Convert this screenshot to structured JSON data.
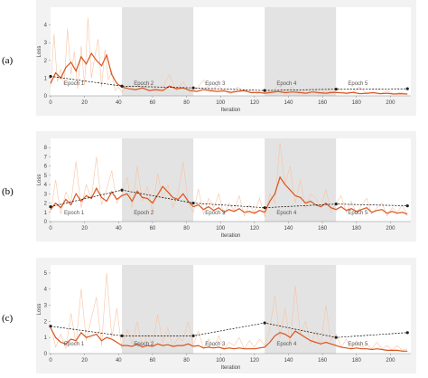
{
  "chart_data": [
    {
      "panel": "(a)",
      "type": "line",
      "xlabel": "Iteration",
      "ylabel": "Loss",
      "xlim": [
        0,
        212
      ],
      "ylim": [
        0,
        5
      ],
      "xticks": [
        0,
        20,
        40,
        60,
        80,
        100,
        120,
        140,
        160,
        180,
        200
      ],
      "yticks": [
        0,
        1,
        2,
        3,
        4
      ],
      "grid": false,
      "epoch_bands": [
        [
          42,
          84
        ],
        [
          126,
          168
        ]
      ],
      "epoch_labels": [
        {
          "text": "Epoch 1",
          "x": 8,
          "y": 0.6
        },
        {
          "text": "Epoch 2",
          "x": 49,
          "y": 0.6
        },
        {
          "text": "Epoch 3",
          "x": 91,
          "y": 0.6
        },
        {
          "text": "Epoch 4",
          "x": 133,
          "y": 0.6
        },
        {
          "text": "Epoch 5",
          "x": 175,
          "y": 0.6
        }
      ],
      "series": [
        {
          "role": "raw",
          "color": "#f7c4a4",
          "x": [
            0,
            2,
            4,
            6,
            8,
            10,
            12,
            14,
            16,
            18,
            20,
            22,
            24,
            26,
            28,
            30,
            32,
            34,
            36,
            38,
            40,
            42,
            46,
            50,
            54,
            58,
            62,
            66,
            70,
            74,
            78,
            82,
            86,
            90,
            94,
            98,
            102,
            106,
            110,
            114,
            118,
            122,
            126,
            130,
            134,
            138,
            142,
            146,
            150,
            154,
            158,
            162,
            166,
            170,
            174,
            178,
            182,
            186,
            190,
            194,
            198,
            202,
            206,
            210
          ],
          "y": [
            0.5,
            3.5,
            0.8,
            1.5,
            0.6,
            3.8,
            1.2,
            2.5,
            0.4,
            2.8,
            0.6,
            4.4,
            1.0,
            2.2,
            3.2,
            0.5,
            2.6,
            0.9,
            1.4,
            0.3,
            0.5,
            0.2,
            0.6,
            0.3,
            0.4,
            0.7,
            0.2,
            0.5,
            1.2,
            0.3,
            0.8,
            0.2,
            0.4,
            0.9,
            0.2,
            0.6,
            0.3,
            0.1,
            0.5,
            0.2,
            0.3,
            0.1,
            0.4,
            0.2,
            0.6,
            0.2,
            0.5,
            0.1,
            0.3,
            0.4,
            0.1,
            0.3,
            0.2,
            0.4,
            0.1,
            0.2,
            0.5,
            0.1,
            0.2,
            0.1,
            0.3,
            0.1,
            0.2,
            0.1
          ]
        },
        {
          "role": "smoothed",
          "color": "#d9541e",
          "x": [
            0,
            3,
            6,
            9,
            12,
            15,
            18,
            21,
            24,
            27,
            30,
            33,
            36,
            39,
            42,
            46,
            50,
            54,
            58,
            62,
            66,
            70,
            74,
            78,
            82,
            86,
            90,
            94,
            98,
            102,
            106,
            110,
            114,
            118,
            122,
            126,
            130,
            134,
            138,
            142,
            146,
            150,
            154,
            158,
            162,
            166,
            170,
            174,
            178,
            182,
            186,
            190,
            194,
            198,
            202,
            206,
            210
          ],
          "y": [
            0.7,
            1.3,
            1.0,
            1.6,
            1.9,
            1.4,
            2.2,
            1.8,
            2.4,
            2.0,
            1.7,
            2.3,
            1.2,
            0.7,
            0.5,
            0.4,
            0.35,
            0.45,
            0.3,
            0.35,
            0.3,
            0.55,
            0.4,
            0.45,
            0.3,
            0.25,
            0.35,
            0.3,
            0.25,
            0.28,
            0.2,
            0.25,
            0.3,
            0.18,
            0.2,
            0.15,
            0.2,
            0.25,
            0.18,
            0.22,
            0.2,
            0.15,
            0.22,
            0.18,
            0.15,
            0.2,
            0.18,
            0.15,
            0.2,
            0.12,
            0.15,
            0.18,
            0.12,
            0.15,
            0.1,
            0.12,
            0.1
          ]
        },
        {
          "role": "epoch",
          "color": "#000000",
          "x": [
            0,
            42,
            84,
            126,
            168,
            210
          ],
          "y": [
            1.1,
            0.55,
            0.45,
            0.3,
            0.38,
            0.4
          ]
        }
      ]
    },
    {
      "panel": "(b)",
      "type": "line",
      "xlabel": "Iteration",
      "ylabel": "Loss",
      "xlim": [
        0,
        212
      ],
      "ylim": [
        0,
        9
      ],
      "xticks": [
        0,
        20,
        40,
        60,
        80,
        100,
        120,
        140,
        160,
        180,
        200
      ],
      "yticks": [
        0,
        1,
        2,
        3,
        4,
        5,
        6,
        7,
        8
      ],
      "grid": false,
      "epoch_bands": [
        [
          42,
          84
        ],
        [
          126,
          168
        ]
      ],
      "epoch_labels": [
        {
          "text": "Epoch 1",
          "x": 8,
          "y": 0.8
        },
        {
          "text": "Epoch 2",
          "x": 49,
          "y": 0.8
        },
        {
          "text": "Epoch 3",
          "x": 91,
          "y": 0.8
        },
        {
          "text": "Epoch 4",
          "x": 133,
          "y": 0.8
        },
        {
          "text": "Epoch 5",
          "x": 175,
          "y": 0.8
        }
      ],
      "series": [
        {
          "role": "raw",
          "color": "#f7c4a4",
          "x": [
            0,
            3,
            6,
            9,
            12,
            15,
            18,
            21,
            24,
            27,
            30,
            33,
            36,
            39,
            42,
            45,
            48,
            51,
            54,
            57,
            60,
            63,
            66,
            69,
            72,
            75,
            78,
            81,
            84,
            87,
            90,
            93,
            96,
            99,
            102,
            105,
            108,
            111,
            114,
            117,
            120,
            123,
            126,
            129,
            132,
            135,
            138,
            141,
            144,
            147,
            150,
            153,
            156,
            159,
            162,
            165,
            168,
            171,
            174,
            177,
            180,
            183,
            186,
            189,
            192,
            195,
            198,
            201,
            204,
            207,
            210
          ],
          "y": [
            1.0,
            4.5,
            0.8,
            3.2,
            2.0,
            6.5,
            1.5,
            4.0,
            2.5,
            7.0,
            1.8,
            3.5,
            5.5,
            2.0,
            3.0,
            4.8,
            1.5,
            6.0,
            2.2,
            3.8,
            1.0,
            5.2,
            2.5,
            4.0,
            1.5,
            3.0,
            6.5,
            2.0,
            1.0,
            3.5,
            0.8,
            2.5,
            1.5,
            3.0,
            0.7,
            2.0,
            1.2,
            2.8,
            0.6,
            1.8,
            1.0,
            2.5,
            0.5,
            3.0,
            2.0,
            8.5,
            4.0,
            6.0,
            2.0,
            4.5,
            1.5,
            3.0,
            2.5,
            1.5,
            3.5,
            1.0,
            2.0,
            2.8,
            1.0,
            2.2,
            0.8,
            1.8,
            2.5,
            0.8,
            1.5,
            2.0,
            0.6,
            1.5,
            1.0,
            1.8,
            0.6
          ]
        },
        {
          "role": "smoothed",
          "color": "#d9541e",
          "x": [
            0,
            3,
            6,
            9,
            12,
            15,
            18,
            21,
            24,
            27,
            30,
            33,
            36,
            39,
            42,
            45,
            48,
            51,
            54,
            57,
            60,
            63,
            66,
            69,
            72,
            75,
            78,
            81,
            84,
            87,
            90,
            93,
            96,
            99,
            102,
            105,
            108,
            111,
            114,
            117,
            120,
            123,
            126,
            129,
            132,
            135,
            138,
            141,
            144,
            147,
            150,
            153,
            156,
            159,
            162,
            165,
            168,
            171,
            174,
            177,
            180,
            183,
            186,
            189,
            192,
            195,
            198,
            201,
            204,
            207,
            210
          ],
          "y": [
            1.3,
            2.0,
            1.5,
            2.4,
            1.8,
            3.0,
            2.2,
            2.8,
            2.5,
            3.6,
            2.6,
            2.2,
            3.2,
            2.4,
            2.8,
            3.0,
            2.2,
            3.3,
            2.6,
            2.5,
            2.0,
            2.9,
            3.8,
            3.2,
            2.6,
            2.4,
            3.0,
            2.2,
            1.6,
            1.8,
            1.3,
            1.6,
            1.2,
            1.5,
            1.0,
            1.3,
            1.1,
            1.4,
            1.0,
            1.1,
            0.9,
            1.2,
            1.0,
            2.2,
            3.0,
            4.8,
            4.0,
            3.4,
            2.8,
            2.6,
            2.0,
            2.2,
            1.8,
            1.6,
            2.0,
            1.5,
            1.3,
            1.6,
            1.2,
            1.4,
            1.1,
            1.3,
            1.5,
            1.0,
            1.2,
            1.3,
            0.9,
            1.1,
            0.9,
            1.0,
            0.8
          ]
        },
        {
          "role": "epoch",
          "color": "#000000",
          "x": [
            0,
            42,
            84,
            126,
            168,
            210
          ],
          "y": [
            1.6,
            3.4,
            2.0,
            1.5,
            1.9,
            1.7
          ]
        }
      ]
    },
    {
      "panel": "(c)",
      "type": "line",
      "xlabel": "Iteration",
      "ylabel": "Loss",
      "xlim": [
        0,
        212
      ],
      "ylim": [
        0,
        5.5
      ],
      "xticks": [
        0,
        20,
        40,
        60,
        80,
        100,
        120,
        140,
        160,
        180,
        200
      ],
      "yticks": [
        0,
        1,
        2,
        3,
        4,
        5
      ],
      "grid": false,
      "epoch_bands": [
        [
          42,
          84
        ],
        [
          126,
          168
        ]
      ],
      "epoch_labels": [
        {
          "text": "Epoch 1",
          "x": 8,
          "y": 0.5
        },
        {
          "text": "Epoch 2",
          "x": 49,
          "y": 0.5
        },
        {
          "text": "Epoch 3",
          "x": 91,
          "y": 0.5
        },
        {
          "text": "Epoch 4",
          "x": 133,
          "y": 0.5
        },
        {
          "text": "Epoch 5",
          "x": 175,
          "y": 0.5
        }
      ],
      "series": [
        {
          "role": "raw",
          "color": "#f7c4a4",
          "x": [
            0,
            3,
            6,
            9,
            12,
            15,
            18,
            21,
            24,
            27,
            30,
            33,
            36,
            39,
            42,
            45,
            48,
            51,
            54,
            57,
            60,
            63,
            66,
            69,
            72,
            75,
            78,
            81,
            84,
            87,
            90,
            93,
            96,
            99,
            102,
            105,
            108,
            111,
            114,
            117,
            120,
            123,
            126,
            129,
            132,
            135,
            138,
            141,
            144,
            147,
            150,
            153,
            156,
            159,
            162,
            165,
            168,
            171,
            174,
            177,
            180,
            183,
            186,
            189,
            192,
            195,
            198,
            201,
            204,
            207,
            210
          ],
          "y": [
            1.8,
            0.4,
            1.2,
            0.3,
            2.5,
            0.6,
            4.0,
            0.8,
            2.2,
            3.5,
            0.5,
            5.0,
            1.0,
            2.8,
            0.3,
            1.5,
            0.6,
            2.0,
            0.4,
            1.2,
            0.5,
            2.4,
            0.7,
            1.6,
            0.4,
            1.0,
            0.8,
            2.0,
            0.5,
            1.4,
            0.3,
            0.9,
            0.4,
            1.1,
            0.3,
            0.7,
            0.5,
            1.0,
            0.3,
            0.8,
            0.4,
            0.9,
            0.5,
            1.5,
            3.6,
            1.0,
            2.8,
            0.6,
            4.2,
            1.2,
            2.0,
            0.6,
            1.4,
            0.5,
            3.0,
            0.8,
            1.2,
            0.4,
            0.9,
            0.3,
            0.8,
            0.4,
            0.6,
            0.3,
            0.7,
            0.3,
            0.5,
            0.2,
            0.5,
            0.2,
            0.3
          ]
        },
        {
          "role": "smoothed",
          "color": "#d9541e",
          "x": [
            0,
            3,
            6,
            9,
            12,
            15,
            18,
            21,
            24,
            27,
            30,
            33,
            36,
            39,
            42,
            45,
            48,
            51,
            54,
            57,
            60,
            63,
            66,
            69,
            72,
            75,
            78,
            81,
            84,
            87,
            90,
            93,
            96,
            99,
            102,
            105,
            108,
            111,
            114,
            117,
            120,
            123,
            126,
            129,
            132,
            135,
            138,
            141,
            144,
            147,
            150,
            153,
            156,
            159,
            162,
            165,
            168,
            171,
            174,
            177,
            180,
            183,
            186,
            189,
            192,
            195,
            198,
            201,
            204,
            207,
            210
          ],
          "y": [
            1.6,
            1.0,
            0.7,
            0.6,
            0.9,
            0.8,
            1.3,
            1.0,
            1.1,
            1.2,
            0.8,
            1.0,
            0.9,
            0.7,
            0.5,
            0.5,
            0.45,
            0.6,
            0.4,
            0.5,
            0.45,
            0.6,
            0.5,
            0.55,
            0.45,
            0.5,
            0.5,
            0.6,
            0.45,
            0.5,
            0.35,
            0.4,
            0.35,
            0.4,
            0.3,
            0.35,
            0.3,
            0.35,
            0.3,
            0.3,
            0.3,
            0.35,
            0.4,
            0.7,
            1.1,
            1.3,
            1.2,
            1.0,
            1.4,
            1.2,
            1.0,
            0.8,
            0.7,
            0.6,
            0.7,
            0.6,
            0.5,
            0.4,
            0.35,
            0.3,
            0.35,
            0.3,
            0.3,
            0.25,
            0.3,
            0.25,
            0.2,
            0.2,
            0.2,
            0.15,
            0.15
          ]
        },
        {
          "role": "epoch",
          "color": "#000000",
          "x": [
            0,
            42,
            84,
            126,
            168,
            210
          ],
          "y": [
            1.7,
            1.1,
            1.1,
            1.9,
            1.0,
            1.3
          ]
        }
      ]
    }
  ]
}
